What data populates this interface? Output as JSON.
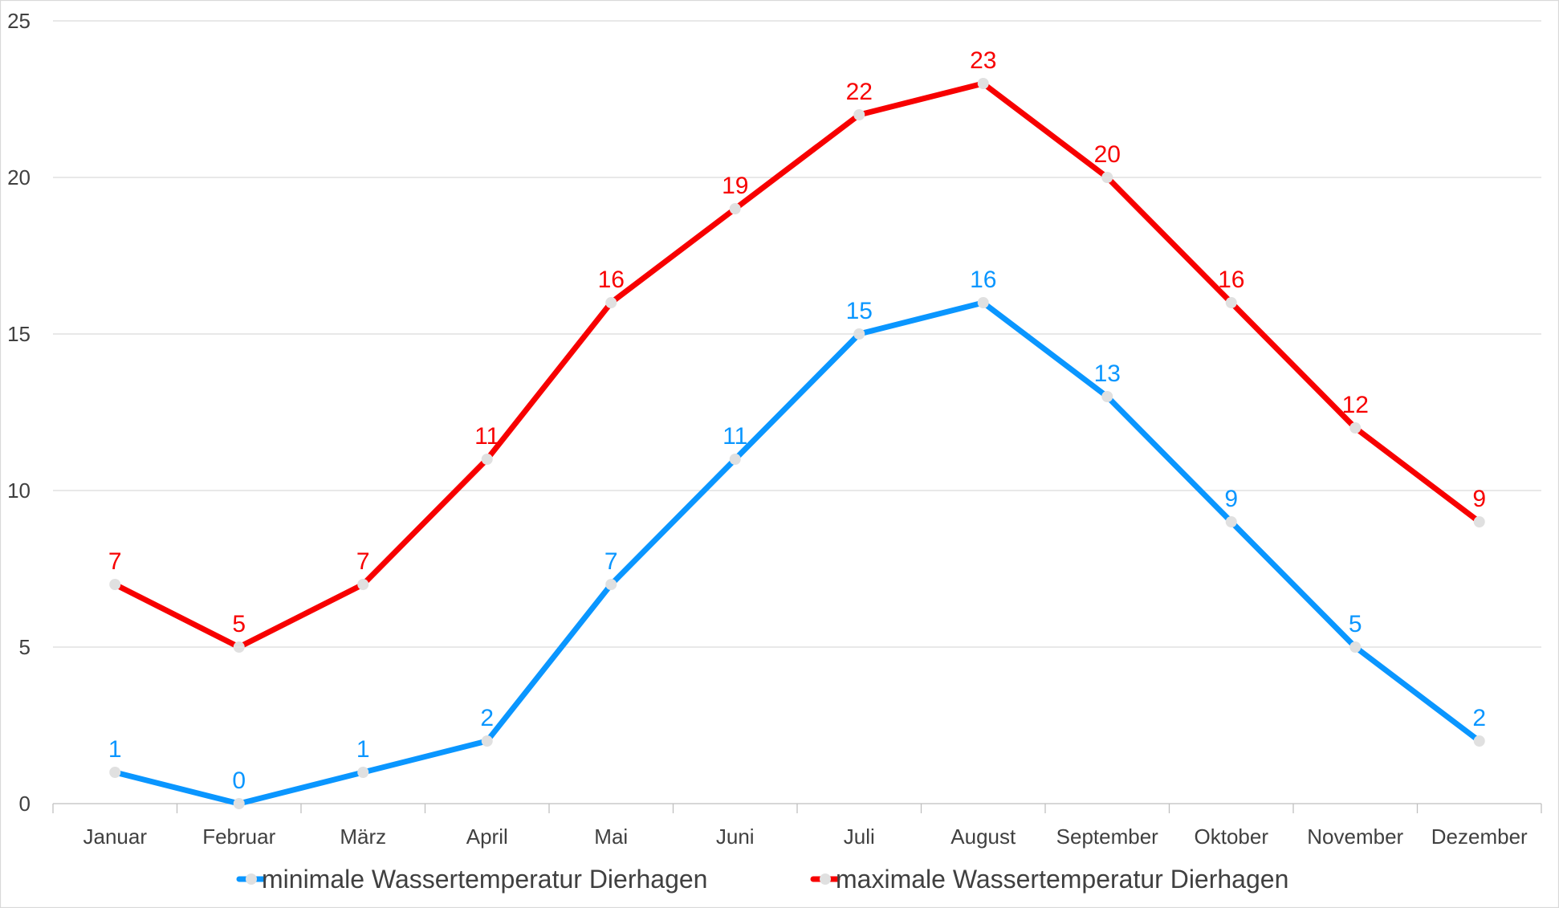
{
  "chart_data": {
    "type": "line",
    "categories": [
      "Januar",
      "Februar",
      "März",
      "April",
      "Mai",
      "Juni",
      "Juli",
      "August",
      "September",
      "Oktober",
      "November",
      "Dezember"
    ],
    "yticks": [
      "0",
      "5",
      "10",
      "15",
      "20",
      "25"
    ],
    "ylim": [
      0,
      25
    ],
    "grid": true,
    "legend_position": "bottom",
    "series": [
      {
        "name": "minimale Wassertemperatur Dierhagen",
        "color": "#0a96ff",
        "values": [
          1,
          0,
          1,
          2,
          7,
          11,
          15,
          16,
          13,
          9,
          5,
          2
        ]
      },
      {
        "name": "maximale Wassertemperatur Dierhagen",
        "color": "#f70000",
        "values": [
          7,
          5,
          7,
          11,
          16,
          19,
          22,
          23,
          20,
          16,
          12,
          9
        ]
      }
    ],
    "marker_color": "#e0e0e0"
  }
}
